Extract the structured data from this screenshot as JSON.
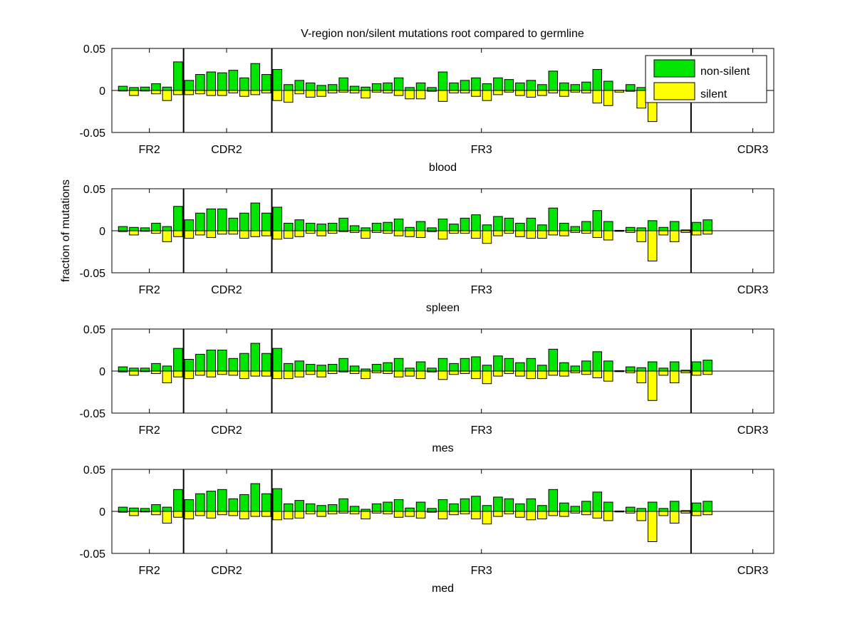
{
  "chart_data": {
    "type": "bar",
    "title": "V-region non/silent mutations root compared to germline",
    "ylabel": "fraction of mutations",
    "ylim": [
      -0.05,
      0.05
    ],
    "xlim": [
      0,
      60
    ],
    "yticks": [
      {
        "value": 0.05,
        "label": "0.05"
      },
      {
        "value": 0,
        "label": "0"
      },
      {
        "value": -0.05,
        "label": "-0.05"
      }
    ],
    "region_boundaries": [
      6.5,
      14.5,
      52.5
    ],
    "region_labels": [
      {
        "pos": 3.4,
        "label": "FR2"
      },
      {
        "pos": 10.4,
        "label": "CDR2"
      },
      {
        "pos": 33.5,
        "label": "FR3"
      },
      {
        "pos": 58.1,
        "label": "CDR3"
      }
    ],
    "legend": {
      "placement": "top-right (first panel)",
      "entries": [
        {
          "label": "non-silent",
          "color": "#00e600"
        },
        {
          "label": "silent",
          "color": "#ffff00"
        }
      ]
    },
    "colors": {
      "non_silent": "#00e600",
      "silent": "#ffff00"
    },
    "panels": [
      {
        "xlabel": "blood",
        "non_silent": [
          0.005,
          0.0035,
          0.004,
          0.008,
          0.004,
          0.034,
          0.012,
          0.019,
          0.022,
          0.021,
          0.024,
          0.015,
          0.032,
          0.019,
          0.025,
          0.007,
          0.012,
          0.009,
          0.006,
          0.007,
          0.015,
          0.005,
          0.004,
          0.008,
          0.009,
          0.015,
          0.0035,
          0.009,
          0.0035,
          0.022,
          0.009,
          0.012,
          0.015,
          0.008,
          0.015,
          0.013,
          0.009,
          0.012,
          0.007,
          0.023,
          0.009,
          0.007,
          0.01,
          0.025,
          0.011,
          0.0003,
          0.007,
          0.0035,
          0.012,
          null,
          null,
          null,
          null,
          null
        ],
        "silent": [
          0,
          -0.006,
          0,
          -0.004,
          -0.012,
          -0.005,
          -0.005,
          -0.004,
          -0.006,
          -0.006,
          -0.003,
          -0.007,
          -0.005,
          -0.003,
          -0.012,
          -0.014,
          -0.004,
          -0.008,
          -0.007,
          -0.003,
          -0.002,
          -0.003,
          -0.009,
          -0.002,
          -0.003,
          -0.006,
          -0.01,
          -0.01,
          -0.001,
          -0.013,
          -0.003,
          -0.003,
          -0.007,
          -0.012,
          -0.005,
          -0.002,
          -0.006,
          -0.008,
          -0.006,
          -0.003,
          -0.007,
          -0.002,
          -0.003,
          -0.015,
          -0.018,
          -0.002,
          -0.001,
          -0.021,
          -0.037,
          null,
          null,
          null,
          null,
          null
        ]
      },
      {
        "xlabel": "spleen",
        "non_silent": [
          0.005,
          0.004,
          0.0035,
          0.009,
          0.005,
          0.029,
          0.013,
          0.021,
          0.026,
          0.026,
          0.015,
          0.021,
          0.033,
          0.021,
          0.028,
          0.009,
          0.013,
          0.009,
          0.008,
          0.009,
          0.015,
          0.006,
          0.0035,
          0.009,
          0.01,
          0.014,
          0.004,
          0.011,
          0.0035,
          0.014,
          0.008,
          0.015,
          0.019,
          0.007,
          0.017,
          0.015,
          0.009,
          0.015,
          0.007,
          0.027,
          0.009,
          0.005,
          0.011,
          0.024,
          0.011,
          0.0005,
          0.004,
          0.0035,
          0.012,
          0.004,
          0.011,
          0.001,
          0.01,
          0.013
        ],
        "silent": [
          -0.001,
          -0.005,
          0,
          -0.003,
          -0.013,
          -0.007,
          -0.009,
          -0.005,
          -0.008,
          -0.004,
          -0.004,
          -0.009,
          -0.007,
          -0.006,
          -0.01,
          -0.009,
          -0.007,
          -0.003,
          -0.006,
          -0.003,
          -0.001,
          -0.002,
          -0.009,
          -0.002,
          -0.003,
          -0.006,
          -0.007,
          -0.008,
          -0.001,
          -0.01,
          -0.003,
          -0.003,
          -0.009,
          -0.015,
          -0.006,
          -0.003,
          -0.007,
          -0.009,
          -0.009,
          -0.005,
          -0.006,
          -0.002,
          -0.003,
          -0.008,
          -0.011,
          -0.0005,
          -0.002,
          -0.013,
          -0.036,
          -0.005,
          -0.013,
          -0.002,
          -0.005,
          -0.004
        ]
      },
      {
        "xlabel": "mes",
        "non_silent": [
          0.005,
          0.0035,
          0.0035,
          0.009,
          0.006,
          0.027,
          0.014,
          0.02,
          0.025,
          0.025,
          0.015,
          0.021,
          0.033,
          0.021,
          0.027,
          0.009,
          0.012,
          0.008,
          0.007,
          0.008,
          0.015,
          0.006,
          0.0025,
          0.008,
          0.01,
          0.015,
          0.0035,
          0.011,
          0.0035,
          0.015,
          0.009,
          0.015,
          0.017,
          0.007,
          0.018,
          0.015,
          0.01,
          0.015,
          0.007,
          0.026,
          0.01,
          0.006,
          0.012,
          0.023,
          0.012,
          0.0005,
          0.005,
          0.004,
          0.011,
          0.0035,
          0.011,
          0.001,
          0.011,
          0.013
        ],
        "silent": [
          -0.001,
          -0.005,
          0,
          -0.003,
          -0.014,
          -0.007,
          -0.009,
          -0.005,
          -0.007,
          -0.004,
          -0.005,
          -0.009,
          -0.006,
          -0.006,
          -0.009,
          -0.009,
          -0.007,
          -0.004,
          -0.007,
          -0.003,
          -0.001,
          -0.003,
          -0.009,
          -0.002,
          -0.003,
          -0.007,
          -0.006,
          -0.009,
          -0.001,
          -0.01,
          -0.004,
          -0.003,
          -0.009,
          -0.015,
          -0.006,
          -0.003,
          -0.006,
          -0.009,
          -0.009,
          -0.005,
          -0.006,
          -0.002,
          -0.004,
          -0.008,
          -0.012,
          -0.0005,
          -0.002,
          -0.014,
          -0.035,
          -0.005,
          -0.014,
          -0.002,
          -0.005,
          -0.004
        ]
      },
      {
        "xlabel": "med",
        "non_silent": [
          0.005,
          0.004,
          0.0035,
          0.008,
          0.005,
          0.026,
          0.014,
          0.021,
          0.024,
          0.026,
          0.015,
          0.02,
          0.033,
          0.021,
          0.027,
          0.009,
          0.013,
          0.009,
          0.007,
          0.008,
          0.015,
          0.006,
          0.0025,
          0.009,
          0.011,
          0.014,
          0.004,
          0.011,
          0.0035,
          0.014,
          0.009,
          0.015,
          0.018,
          0.007,
          0.017,
          0.015,
          0.009,
          0.015,
          0.007,
          0.026,
          0.01,
          0.006,
          0.012,
          0.023,
          0.011,
          0.0005,
          0.005,
          0.0035,
          0.011,
          0.0035,
          0.012,
          0.001,
          0.01,
          0.012
        ],
        "silent": [
          -0.001,
          -0.005,
          0,
          -0.004,
          -0.014,
          -0.007,
          -0.009,
          -0.005,
          -0.008,
          -0.004,
          -0.005,
          -0.009,
          -0.006,
          -0.006,
          -0.01,
          -0.009,
          -0.008,
          -0.003,
          -0.006,
          -0.003,
          -0.002,
          -0.003,
          -0.009,
          -0.002,
          -0.003,
          -0.007,
          -0.006,
          -0.008,
          -0.001,
          -0.009,
          -0.004,
          -0.003,
          -0.009,
          -0.015,
          -0.006,
          -0.003,
          -0.007,
          -0.01,
          -0.009,
          -0.005,
          -0.006,
          -0.002,
          -0.004,
          -0.008,
          -0.011,
          -0.0005,
          -0.002,
          -0.011,
          -0.036,
          -0.005,
          -0.014,
          -0.002,
          -0.005,
          -0.004
        ]
      }
    ]
  }
}
